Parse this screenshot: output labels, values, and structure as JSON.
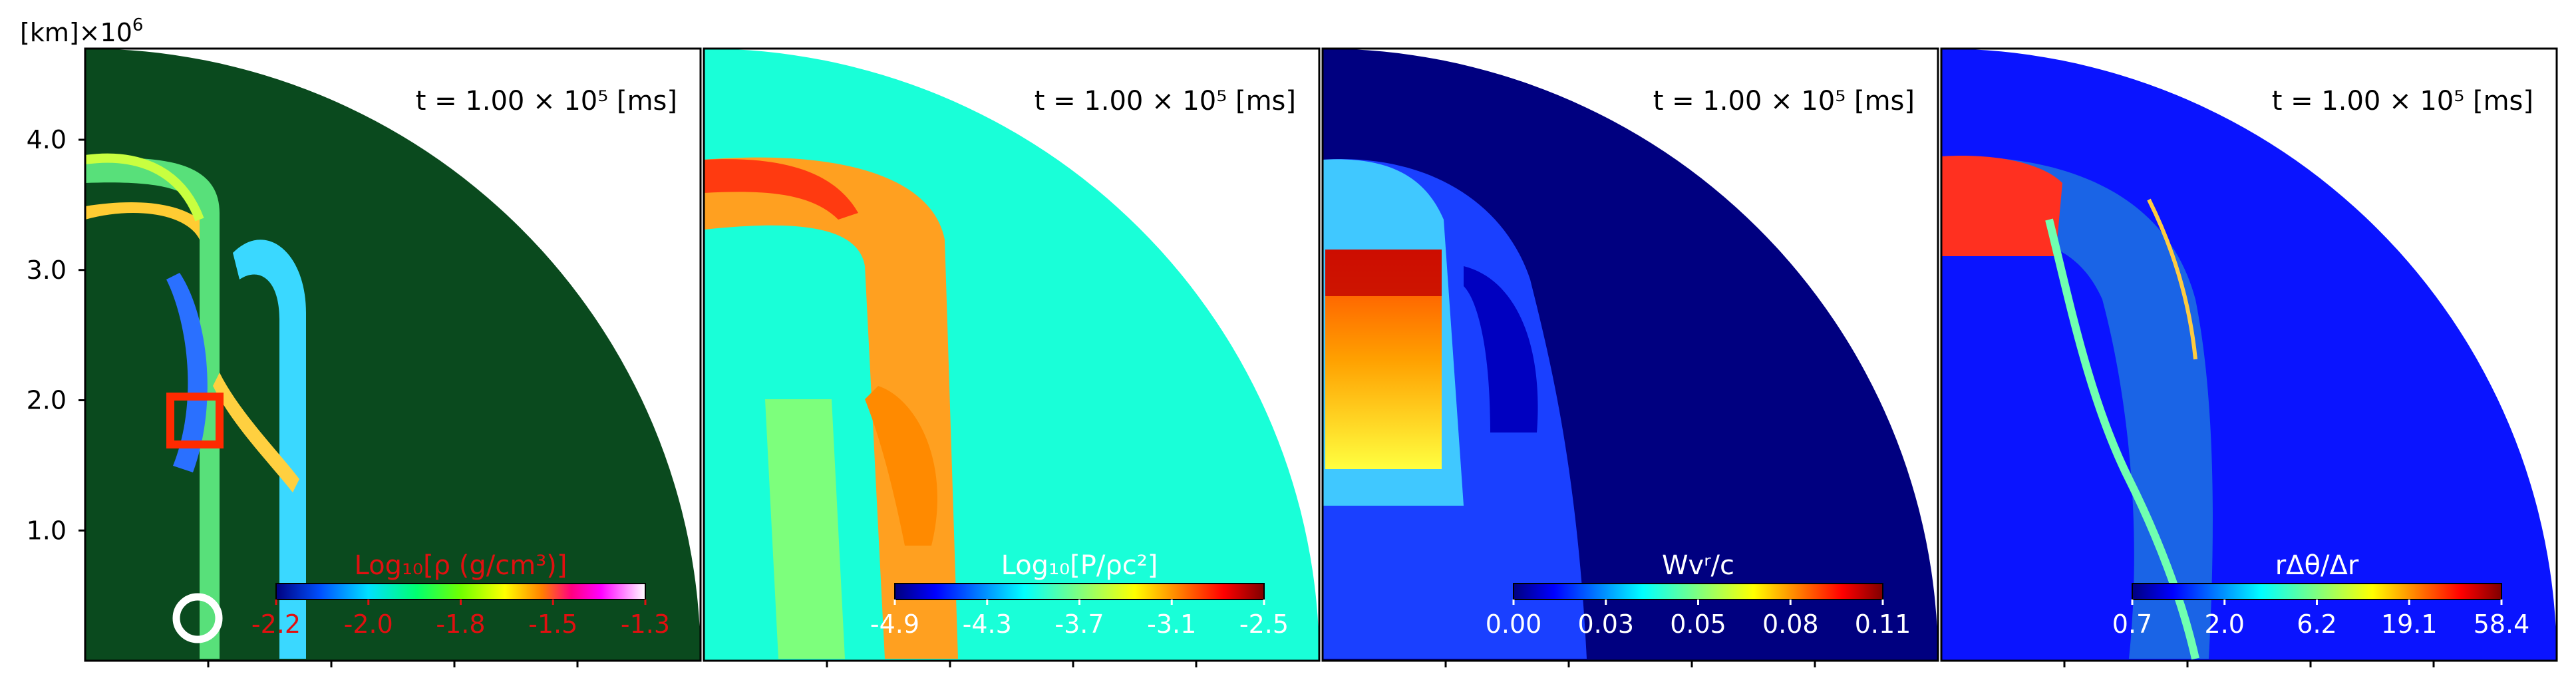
{
  "y_unit_label": "[km]×10",
  "y_unit_exponent": "6",
  "y_ticks": [
    "1.0",
    "2.0",
    "3.0",
    "4.0"
  ],
  "time_label": "t = 1.00 × 10⁵ [ms]",
  "colors": {
    "dark_bg_panel1": "#0a4a1e",
    "panel2_bg": "#19ffd8",
    "panel3_bg": "#000080",
    "panel4_bg": "#0a14ff",
    "marker_square": "#ff2a00",
    "marker_circle": "#ffffff"
  },
  "panels": [
    {
      "colorbar_title": "Log₁₀[ρ (g/cm³)]",
      "ticks": [
        "-2.2",
        "-2.0",
        "-1.8",
        "-1.5",
        "-1.3"
      ],
      "label_color": "#e01010"
    },
    {
      "colorbar_title": "Log₁₀[P/ρc²]",
      "ticks": [
        "-4.9",
        "-4.3",
        "-3.7",
        "-3.1",
        "-2.5"
      ],
      "label_color": "#ffffff"
    },
    {
      "colorbar_title": "Wvʳ/c",
      "ticks": [
        "0.00",
        "0.03",
        "0.05",
        "0.08",
        "0.11"
      ],
      "label_color": "#ffffff"
    },
    {
      "colorbar_title": "rΔθ/Δr",
      "ticks": [
        "0.7",
        "2.0",
        "6.2",
        "19.1",
        "58.4"
      ],
      "label_color": "#ffffff"
    }
  ],
  "chart_data": {
    "type": "heatmap",
    "panel_count": 4,
    "ylabel": "[km]×10⁶",
    "ylim": [
      0,
      4.7
    ],
    "y_ticks": [
      1.0,
      2.0,
      3.0,
      4.0
    ],
    "time_annotation": "t = 1.00 × 10⁵ [ms]",
    "colorbars": [
      {
        "title": "Log₁₀[ρ (g/cm³)]",
        "range": [
          -2.2,
          -1.3
        ],
        "ticks": [
          -2.2,
          -2.0,
          -1.8,
          -1.5,
          -1.3
        ],
        "colormap": "ncar"
      },
      {
        "title": "Log₁₀[P/ρc²]",
        "range": [
          -4.9,
          -2.5
        ],
        "ticks": [
          -4.9,
          -4.3,
          -3.7,
          -3.1,
          -2.5
        ],
        "colormap": "jet"
      },
      {
        "title": "Wvʳ/c",
        "range": [
          0.0,
          0.11
        ],
        "ticks": [
          0.0,
          0.03,
          0.05,
          0.08,
          0.11
        ],
        "colormap": "jet"
      },
      {
        "title": "rΔθ/Δr",
        "range": [
          0.7,
          58.4
        ],
        "ticks": [
          0.7,
          2.0,
          6.2,
          19.1,
          58.4
        ],
        "scale": "log",
        "colormap": "jet"
      }
    ]
  }
}
